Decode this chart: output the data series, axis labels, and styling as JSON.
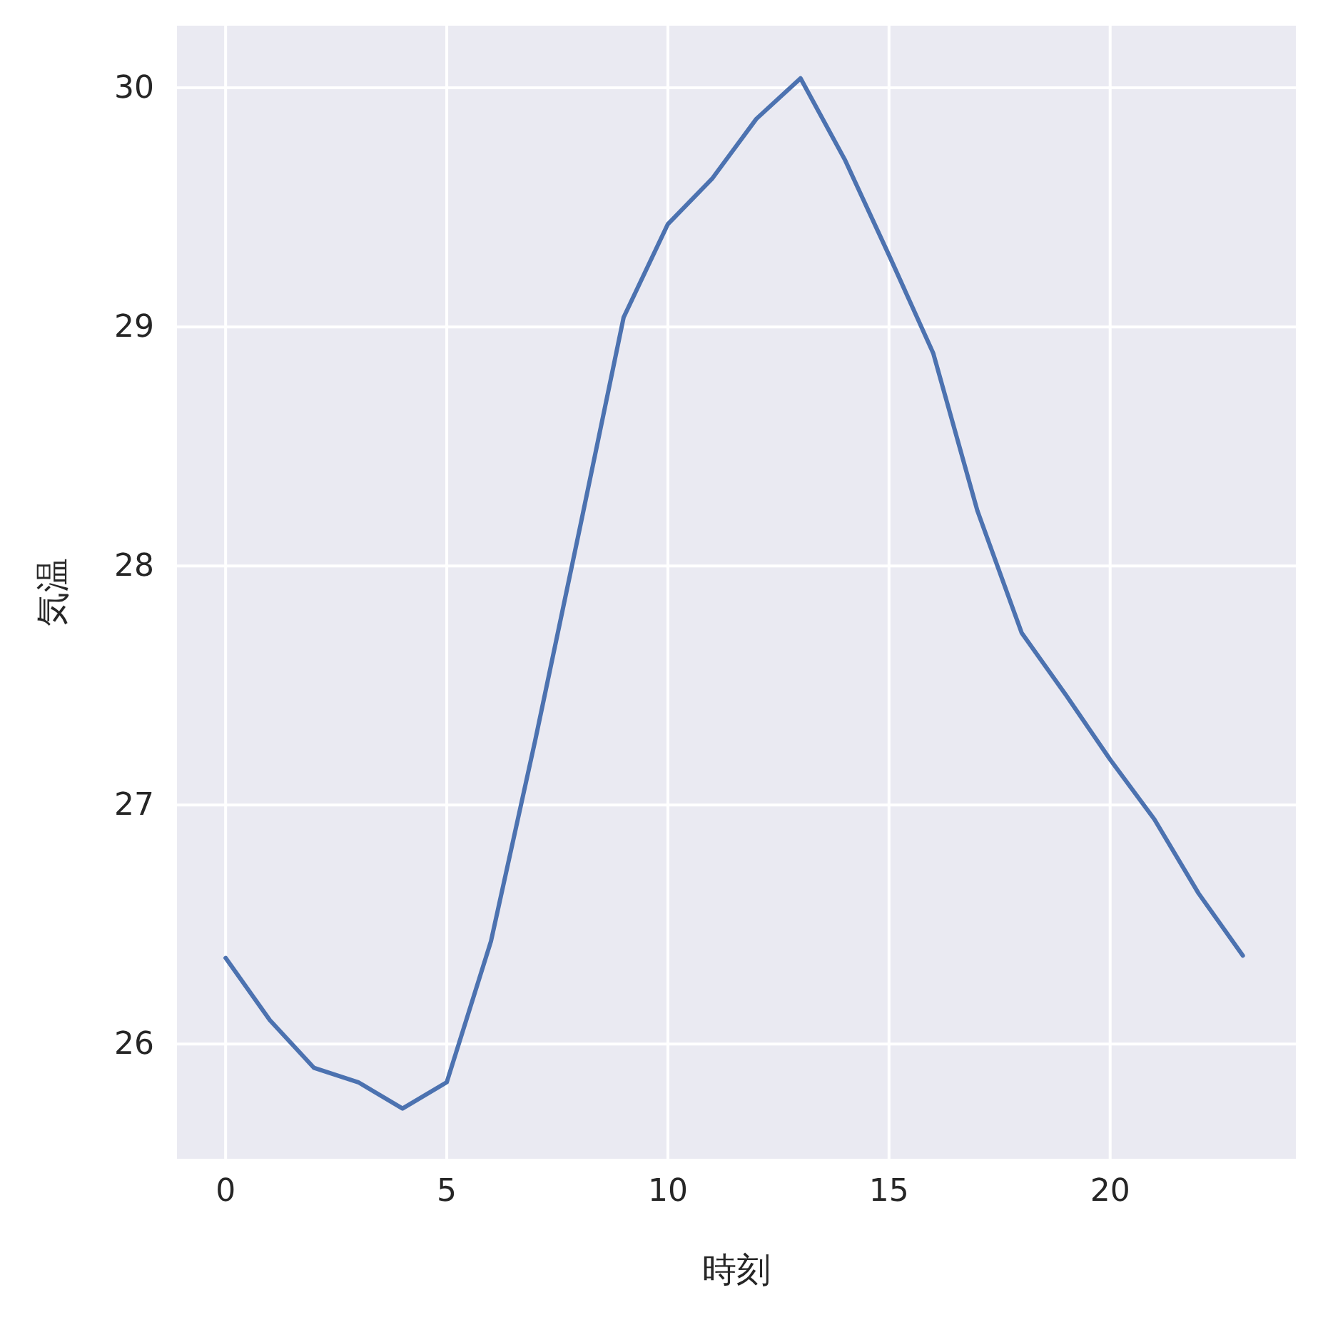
{
  "chart_data": {
    "type": "line",
    "xlabel": "時刻",
    "ylabel": "気温",
    "x": [
      0,
      1,
      2,
      3,
      4,
      5,
      6,
      7,
      8,
      9,
      10,
      11,
      12,
      13,
      14,
      15,
      16,
      17,
      18,
      19,
      20,
      21,
      22,
      23
    ],
    "series": [
      {
        "color": "#4c72b0",
        "values": [
          26.36,
          26.1,
          25.9,
          25.84,
          25.73,
          25.84,
          26.43,
          27.27,
          28.15,
          29.04,
          29.43,
          29.62,
          29.87,
          30.04,
          29.7,
          29.3,
          28.89,
          28.23,
          27.72,
          27.46,
          27.19,
          26.94,
          26.63,
          26.37
        ]
      }
    ],
    "xlim": [
      -1.1,
      24.2
    ],
    "ylim": [
      25.52,
      30.26
    ],
    "xticks": [
      0,
      5,
      10,
      15,
      20
    ],
    "yticks": [
      26,
      27,
      28,
      29,
      30
    ],
    "grid": true,
    "marker": "none",
    "line_style": "solid"
  }
}
